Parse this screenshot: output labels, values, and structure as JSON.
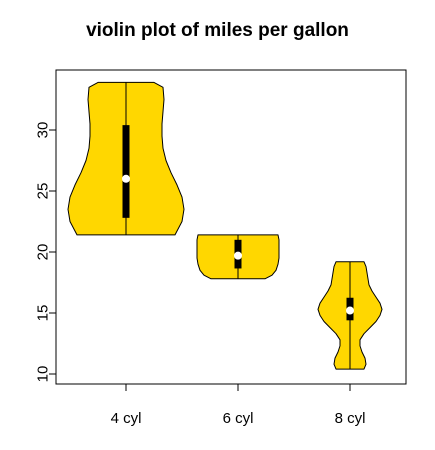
{
  "chart_data": {
    "type": "violin",
    "title": "violin plot of miles per gallon",
    "xlabel": "",
    "ylabel": "",
    "categories": [
      "4 cyl",
      "6 cyl",
      "8 cyl"
    ],
    "ylim": [
      10,
      35
    ],
    "yticks": [
      10,
      15,
      20,
      25,
      30
    ],
    "grid": false,
    "legend": "none",
    "fill_color": "#FFD700",
    "outline_color": "#000000",
    "median_color": "#FFFFFF",
    "violins": [
      {
        "category": "4 cyl",
        "min": 21.4,
        "q1": 22.8,
        "median": 26.0,
        "q3": 30.4,
        "max": 33.9,
        "profile": [
          [
            21.4,
            0.49
          ],
          [
            22.5,
            0.56
          ],
          [
            23.5,
            0.58
          ],
          [
            24.5,
            0.56
          ],
          [
            25.5,
            0.51
          ],
          [
            26.5,
            0.45
          ],
          [
            27.5,
            0.4
          ],
          [
            28.5,
            0.37
          ],
          [
            29.5,
            0.36
          ],
          [
            30.5,
            0.36
          ],
          [
            31.5,
            0.37
          ],
          [
            32.5,
            0.38
          ],
          [
            33.5,
            0.37
          ],
          [
            33.9,
            0.28
          ]
        ]
      },
      {
        "category": "6 cyl",
        "min": 17.8,
        "q1": 18.65,
        "median": 19.7,
        "q3": 21.0,
        "max": 21.4,
        "profile": [
          [
            17.8,
            0.27
          ],
          [
            18.1,
            0.34
          ],
          [
            18.5,
            0.38
          ],
          [
            19.0,
            0.4
          ],
          [
            19.5,
            0.41
          ],
          [
            20.0,
            0.41
          ],
          [
            20.5,
            0.41
          ],
          [
            21.0,
            0.41
          ],
          [
            21.4,
            0.4
          ]
        ]
      },
      {
        "category": "8 cyl",
        "min": 10.4,
        "q1": 14.4,
        "median": 15.2,
        "q3": 16.25,
        "max": 19.2,
        "profile": [
          [
            10.4,
            0.14
          ],
          [
            10.8,
            0.16
          ],
          [
            11.3,
            0.15
          ],
          [
            11.8,
            0.12
          ],
          [
            12.3,
            0.1
          ],
          [
            12.8,
            0.1
          ],
          [
            13.3,
            0.14
          ],
          [
            13.8,
            0.2
          ],
          [
            14.3,
            0.26
          ],
          [
            14.8,
            0.3
          ],
          [
            15.3,
            0.32
          ],
          [
            15.8,
            0.3
          ],
          [
            16.3,
            0.26
          ],
          [
            16.8,
            0.22
          ],
          [
            17.3,
            0.19
          ],
          [
            17.8,
            0.18
          ],
          [
            18.3,
            0.17
          ],
          [
            18.8,
            0.16
          ],
          [
            19.2,
            0.14
          ]
        ]
      }
    ]
  }
}
